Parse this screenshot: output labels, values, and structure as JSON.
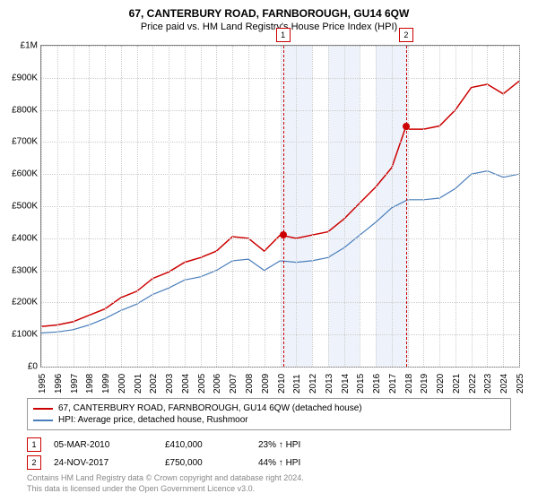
{
  "header": {
    "title": "67, CANTERBURY ROAD, FARNBOROUGH, GU14 6QW",
    "subtitle": "Price paid vs. HM Land Registry's House Price Index (HPI)"
  },
  "chart": {
    "type": "line",
    "background": "#ffffff",
    "grid_color": "#cccccc",
    "border_color": "#808080",
    "y_axis": {
      "min": 0,
      "max": 1000000,
      "ticks": [
        {
          "v": 0,
          "label": "£0"
        },
        {
          "v": 100000,
          "label": "£100K"
        },
        {
          "v": 200000,
          "label": "£200K"
        },
        {
          "v": 300000,
          "label": "£300K"
        },
        {
          "v": 400000,
          "label": "£400K"
        },
        {
          "v": 500000,
          "label": "£500K"
        },
        {
          "v": 600000,
          "label": "£600K"
        },
        {
          "v": 700000,
          "label": "£700K"
        },
        {
          "v": 800000,
          "label": "£800K"
        },
        {
          "v": 900000,
          "label": "£900K"
        },
        {
          "v": 1000000,
          "label": "£1M"
        }
      ]
    },
    "x_axis": {
      "min": 1995,
      "max": 2025,
      "ticks": [
        1995,
        1996,
        1997,
        1998,
        1999,
        2000,
        2001,
        2002,
        2003,
        2004,
        2005,
        2006,
        2007,
        2008,
        2009,
        2010,
        2011,
        2012,
        2013,
        2014,
        2015,
        2016,
        2017,
        2018,
        2019,
        2020,
        2021,
        2022,
        2023,
        2024,
        2025
      ]
    },
    "shade_bands": [
      [
        2010,
        2012
      ],
      [
        2013,
        2015
      ],
      [
        2016,
        2018
      ]
    ],
    "shade_color": "#eef3fb",
    "sale_markers": [
      {
        "idx": "1",
        "year": 2010.18
      },
      {
        "idx": "2",
        "year": 2017.9
      }
    ],
    "datapoints": [
      {
        "year": 2010.18,
        "value": 410000
      },
      {
        "year": 2017.9,
        "value": 750000
      }
    ],
    "series": [
      {
        "name": "property",
        "color": "#cc0000",
        "width": 1.5,
        "points": [
          [
            1995,
            125000
          ],
          [
            1996,
            130000
          ],
          [
            1997,
            140000
          ],
          [
            1998,
            160000
          ],
          [
            1999,
            180000
          ],
          [
            2000,
            215000
          ],
          [
            2001,
            235000
          ],
          [
            2002,
            275000
          ],
          [
            2003,
            295000
          ],
          [
            2004,
            325000
          ],
          [
            2005,
            340000
          ],
          [
            2006,
            360000
          ],
          [
            2007,
            405000
          ],
          [
            2008,
            400000
          ],
          [
            2009,
            360000
          ],
          [
            2010,
            410000
          ],
          [
            2011,
            400000
          ],
          [
            2012,
            410000
          ],
          [
            2013,
            420000
          ],
          [
            2014,
            460000
          ],
          [
            2015,
            510000
          ],
          [
            2016,
            560000
          ],
          [
            2017,
            620000
          ],
          [
            2017.9,
            750000
          ],
          [
            2018,
            740000
          ],
          [
            2019,
            740000
          ],
          [
            2020,
            750000
          ],
          [
            2021,
            800000
          ],
          [
            2022,
            870000
          ],
          [
            2023,
            880000
          ],
          [
            2024,
            850000
          ],
          [
            2025,
            890000
          ]
        ]
      },
      {
        "name": "hpi",
        "color": "#4a7ebb",
        "width": 1.2,
        "points": [
          [
            1995,
            105000
          ],
          [
            1996,
            108000
          ],
          [
            1997,
            115000
          ],
          [
            1998,
            130000
          ],
          [
            1999,
            150000
          ],
          [
            2000,
            175000
          ],
          [
            2001,
            195000
          ],
          [
            2002,
            225000
          ],
          [
            2003,
            245000
          ],
          [
            2004,
            270000
          ],
          [
            2005,
            280000
          ],
          [
            2006,
            300000
          ],
          [
            2007,
            330000
          ],
          [
            2008,
            335000
          ],
          [
            2009,
            300000
          ],
          [
            2010,
            330000
          ],
          [
            2011,
            325000
          ],
          [
            2012,
            330000
          ],
          [
            2013,
            340000
          ],
          [
            2014,
            370000
          ],
          [
            2015,
            410000
          ],
          [
            2016,
            450000
          ],
          [
            2017,
            495000
          ],
          [
            2018,
            520000
          ],
          [
            2019,
            520000
          ],
          [
            2020,
            525000
          ],
          [
            2021,
            555000
          ],
          [
            2022,
            600000
          ],
          [
            2023,
            610000
          ],
          [
            2024,
            590000
          ],
          [
            2025,
            600000
          ]
        ]
      }
    ]
  },
  "legend": {
    "items": [
      {
        "color": "#cc0000",
        "label": "67, CANTERBURY ROAD, FARNBOROUGH, GU14 6QW (detached house)"
      },
      {
        "color": "#4a7ebb",
        "label": "HPI: Average price, detached house, Rushmoor"
      }
    ]
  },
  "sales": [
    {
      "idx": "1",
      "date": "05-MAR-2010",
      "price": "£410,000",
      "diff": "23% ↑ HPI"
    },
    {
      "idx": "2",
      "date": "24-NOV-2017",
      "price": "£750,000",
      "diff": "44% ↑ HPI"
    }
  ],
  "footer": {
    "line1": "Contains HM Land Registry data © Crown copyright and database right 2024.",
    "line2": "This data is licensed under the Open Government Licence v3.0."
  }
}
